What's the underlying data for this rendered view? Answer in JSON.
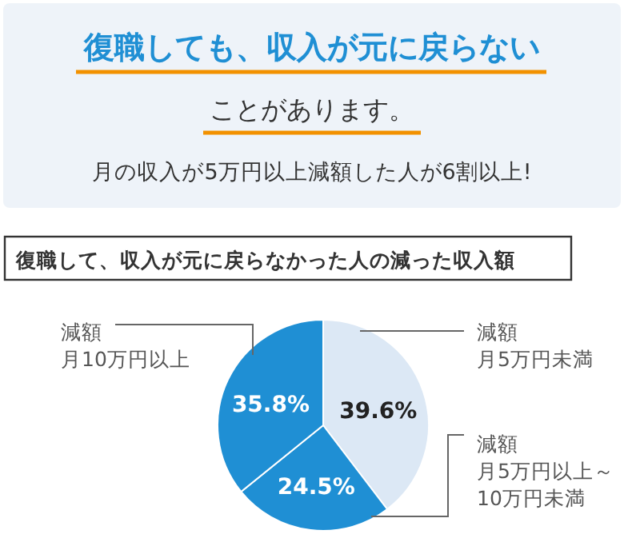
{
  "chart_data": {
    "type": "pie",
    "title": "復職して、収入が元に戻らなかった人の減った収入額",
    "annotations": [
      "復職しても、収入が元に戻らない",
      "ことがあります。",
      "月の収入が5万円以上減額した人が6割以上!"
    ],
    "categories": [
      "減額月5万円未満",
      "減額月5万円以上～10万円未満",
      "減額月10万円以上"
    ],
    "value_labels": [
      "39.6%",
      "24.5%",
      "35.8%"
    ],
    "values": [
      39.6,
      24.5,
      35.8
    ],
    "colors": [
      "#dce8f5",
      "#1f8fd4",
      "#1f8fd4"
    ],
    "data_labels": true
  }
}
